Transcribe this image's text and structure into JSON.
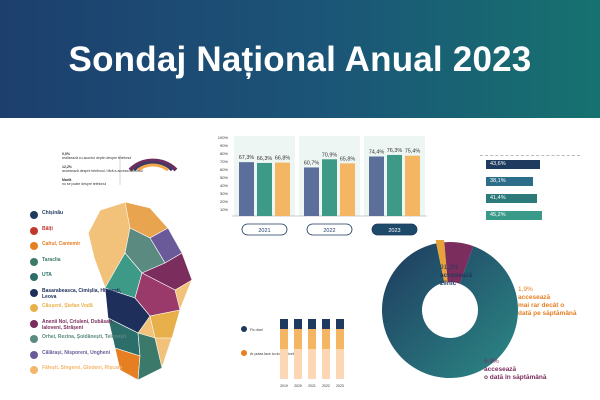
{
  "header": {
    "title": "Sondaj Național Anual 2023"
  },
  "gauge": {
    "items": [
      {
        "pct": "0,0%",
        "text": "realizează cu acordul deplin despre telefonul",
        "color": "#6b2e5f"
      },
      {
        "pct": "12,2%",
        "text": "accesează despre telefonul / fără a accesa telefonul",
        "color": "#3a3a6a"
      },
      {
        "pct": "Marfă",
        "text": "nu se poate despre telefonul",
        "color": "#f5a84a"
      }
    ]
  },
  "map_legend": [
    {
      "label": "Chișinău",
      "color": "#1e3a5f"
    },
    {
      "label": "Bălți",
      "color": "#c0392b"
    },
    {
      "label": "Cahul, Cantemir",
      "color": "#e67e22"
    },
    {
      "label": "Taraclia",
      "color": "#3b7a6a"
    },
    {
      "label": "UTA",
      "color": "#2c6e6a"
    },
    {
      "label": "Basarabeasca, Cimișlia, Hîncești, Leova",
      "color": "#1f2f5c"
    },
    {
      "label": "Căușeni, Ștefan Vodă",
      "color": "#e8b04a"
    },
    {
      "label": "Anenii Noi, Criuleni, Dubăsari, Ialoveni, Strășeni",
      "color": "#7b2d5e"
    },
    {
      "label": "Orhei, Rezina, Șoldănești, Telenești",
      "color": "#5a8a80"
    },
    {
      "label": "Călărași, Nisporeni, Ungheni",
      "color": "#6b5a9a"
    },
    {
      "label": "Fălești, Sîngerei, Glodeni, Rîșcani",
      "color": "#f5b66b"
    }
  ],
  "chart_data": [
    {
      "type": "bar",
      "categories": [
        "2021",
        "2022",
        "2023"
      ],
      "series": [
        {
          "values": [
            67.3,
            60.7,
            74.4
          ],
          "color": "#5b6f9a"
        },
        {
          "values": [
            66.3,
            70.9,
            76.3
          ],
          "color": "#3c9a86"
        },
        {
          "values": [
            66.8,
            65.8,
            75.4
          ],
          "color": "#f5b664"
        }
      ],
      "labels": [
        [
          "67,3%",
          "66,3%",
          "66,8%"
        ],
        [
          "60,7%",
          "70,9%",
          "65,8%"
        ],
        [
          "74,4%",
          "76,3%",
          "75,4%"
        ]
      ],
      "ylim": [
        0,
        100
      ],
      "yticks": [
        "100%",
        "90%",
        "80%",
        "70%",
        "60%",
        "50%",
        "40%",
        "30%",
        "20%",
        "10%"
      ],
      "year_labels": [
        "2021",
        "2022",
        "2023"
      ]
    },
    {
      "type": "bar",
      "orientation": "horizontal",
      "values": [
        43.6,
        38.1,
        41.4,
        45.2
      ],
      "labels": [
        "43,6%",
        "38,1%",
        "41,4%",
        "45,2%"
      ],
      "colors": [
        "#1e3a5f",
        "#2c6e8a",
        "#2c7a7a",
        "#3a9a8a"
      ]
    },
    {
      "type": "pie",
      "values": [
        91.2,
        1.9,
        6.9
      ],
      "texts": [
        {
          "pct": "91,2%",
          "line1": "accesează",
          "line2": "zilnic",
          "color": "#1e3a5f"
        },
        {
          "pct": "1,9%",
          "line1": "accesează",
          "line2": "mai rar decât o",
          "line3": "dată pe săptămână",
          "color": "#e67e22"
        },
        {
          "pct": "6,9%",
          "line1": "accesează",
          "line2": "o dată în săptămână",
          "color": "#7b2d5e"
        }
      ]
    }
  ],
  "small_chart": {
    "legend": [
      {
        "label": "Fix nivel",
        "color": "#1e3a5f"
      },
      {
        "label": "Ar putea face la nivelul nivelurii",
        "color": "#e67e22"
      }
    ],
    "columns": [
      "2019",
      "2020",
      "2021",
      "2022",
      "2023"
    ]
  }
}
